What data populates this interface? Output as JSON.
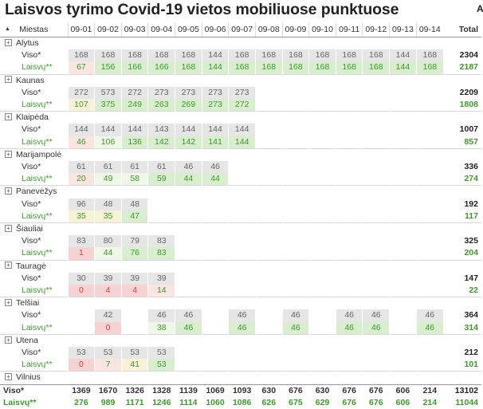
{
  "title": "Laisvos tyrimo Covid-19 vietos mobiliuose punktuose",
  "title_extra": "A",
  "header": {
    "city_col": "Miestas",
    "days": [
      "09-01",
      "09-02",
      "09-03",
      "09-04",
      "09-05",
      "09-06",
      "09-07",
      "09-08",
      "09-09",
      "09-10",
      "09-11",
      "09-12",
      "09-13",
      "09-14"
    ],
    "total": "Total"
  },
  "labels": {
    "viso": "Viso*",
    "laisvu": "Laisvų**"
  },
  "cities": [
    {
      "name": "Alytus",
      "viso": [
        "168",
        "168",
        "168",
        "168",
        "168",
        "144",
        "168",
        "168",
        "168",
        "168",
        "168",
        "168",
        "144",
        "168"
      ],
      "viso_total": "2304",
      "laisvu": [
        "67",
        "156",
        "166",
        "166",
        "168",
        "144",
        "168",
        "168",
        "168",
        "168",
        "168",
        "168",
        "144",
        "168"
      ],
      "laisvu_total": "2187",
      "shade": [
        "pink",
        "green",
        "green",
        "green",
        "green",
        "green",
        "green",
        "green",
        "green",
        "green",
        "green",
        "green",
        "green",
        "green"
      ]
    },
    {
      "name": "Kaunas",
      "viso": [
        "272",
        "573",
        "272",
        "273",
        "273",
        "273",
        "273",
        "",
        "",
        "",
        "",
        "",
        "",
        ""
      ],
      "viso_total": "2209",
      "laisvu": [
        "107",
        "375",
        "249",
        "263",
        "269",
        "273",
        "272",
        "",
        "",
        "",
        "",
        "",
        "",
        ""
      ],
      "laisvu_total": "1808",
      "shade": [
        "yellow",
        "green",
        "green",
        "green",
        "green",
        "green",
        "green",
        "",
        "",
        "",
        "",
        "",
        "",
        ""
      ]
    },
    {
      "name": "Klaipėda",
      "viso": [
        "144",
        "144",
        "144",
        "143",
        "144",
        "144",
        "144",
        "",
        "",
        "",
        "",
        "",
        "",
        ""
      ],
      "viso_total": "1007",
      "laisvu": [
        "46",
        "106",
        "136",
        "142",
        "142",
        "141",
        "144",
        "",
        "",
        "",
        "",
        "",
        "",
        ""
      ],
      "laisvu_total": "857",
      "shade": [
        "pink",
        "pale",
        "green",
        "green",
        "green",
        "green",
        "green",
        "",
        "",
        "",
        "",
        "",
        "",
        ""
      ]
    },
    {
      "name": "Marijampolė",
      "viso": [
        "61",
        "61",
        "61",
        "61",
        "46",
        "46",
        "",
        "",
        "",
        "",
        "",
        "",
        "",
        ""
      ],
      "viso_total": "336",
      "laisvu": [
        "20",
        "49",
        "58",
        "59",
        "44",
        "44",
        "",
        "",
        "",
        "",
        "",
        "",
        "",
        ""
      ],
      "laisvu_total": "274",
      "shade": [
        "pink",
        "pale",
        "pale",
        "green",
        "green",
        "green",
        "",
        "",
        "",
        "",
        "",
        "",
        "",
        ""
      ]
    },
    {
      "name": "Panevėžys",
      "viso": [
        "96",
        "48",
        "48",
        "",
        "",
        "",
        "",
        "",
        "",
        "",
        "",
        "",
        "",
        ""
      ],
      "viso_total": "192",
      "laisvu": [
        "35",
        "35",
        "47",
        "",
        "",
        "",
        "",
        "",
        "",
        "",
        "",
        "",
        "",
        ""
      ],
      "laisvu_total": "117",
      "shade": [
        "yellow",
        "yellow",
        "green",
        "",
        "",
        "",
        "",
        "",
        "",
        "",
        "",
        "",
        "",
        ""
      ]
    },
    {
      "name": "Šiauliai",
      "viso": [
        "83",
        "80",
        "79",
        "83",
        "",
        "",
        "",
        "",
        "",
        "",
        "",
        "",
        "",
        ""
      ],
      "viso_total": "325",
      "laisvu": [
        "1",
        "44",
        "76",
        "83",
        "",
        "",
        "",
        "",
        "",
        "",
        "",
        "",
        "",
        ""
      ],
      "laisvu_total": "204",
      "shade": [
        "red",
        "pale",
        "green",
        "green",
        "",
        "",
        "",
        "",
        "",
        "",
        "",
        "",
        "",
        ""
      ]
    },
    {
      "name": "Tauragė",
      "viso": [
        "30",
        "39",
        "39",
        "39",
        "",
        "",
        "",
        "",
        "",
        "",
        "",
        "",
        "",
        ""
      ],
      "viso_total": "147",
      "laisvu": [
        "0",
        "4",
        "4",
        "14",
        "",
        "",
        "",
        "",
        "",
        "",
        "",
        "",
        "",
        ""
      ],
      "laisvu_total": "22",
      "shade": [
        "red",
        "red",
        "red",
        "pink",
        "",
        "",
        "",
        "",
        "",
        "",
        "",
        "",
        "",
        ""
      ]
    },
    {
      "name": "Telšiai",
      "viso": [
        "",
        "42",
        "",
        "46",
        "46",
        "",
        "46",
        "",
        "46",
        "",
        "46",
        "46",
        "",
        "46"
      ],
      "viso_total": "364",
      "laisvu": [
        "",
        "0",
        "",
        "38",
        "46",
        "",
        "46",
        "",
        "46",
        "",
        "46",
        "46",
        "",
        "46"
      ],
      "laisvu_total": "314",
      "shade": [
        "",
        "red",
        "",
        "pale",
        "green",
        "",
        "green",
        "",
        "green",
        "",
        "green",
        "green",
        "",
        "green"
      ]
    },
    {
      "name": "Utena",
      "viso": [
        "53",
        "53",
        "53",
        "53",
        "",
        "",
        "",
        "",
        "",
        "",
        "",
        "",
        "",
        ""
      ],
      "viso_total": "212",
      "laisvu": [
        "0",
        "7",
        "41",
        "53",
        "",
        "",
        "",
        "",
        "",
        "",
        "",
        "",
        "",
        ""
      ],
      "laisvu_total": "101",
      "shade": [
        "red",
        "pink",
        "yellow",
        "green",
        "",
        "",
        "",
        "",
        "",
        "",
        "",
        "",
        "",
        ""
      ]
    },
    {
      "name": "Vilnius"
    }
  ],
  "grand": {
    "viso": [
      "1369",
      "1670",
      "1326",
      "1328",
      "1139",
      "1069",
      "1093",
      "630",
      "676",
      "630",
      "676",
      "676",
      "606",
      "214"
    ],
    "viso_total": "13102",
    "laisvu": [
      "276",
      "989",
      "1171",
      "1246",
      "1114",
      "1060",
      "1086",
      "626",
      "675",
      "629",
      "676",
      "676",
      "606",
      "214"
    ],
    "laisvu_total": "11044"
  }
}
